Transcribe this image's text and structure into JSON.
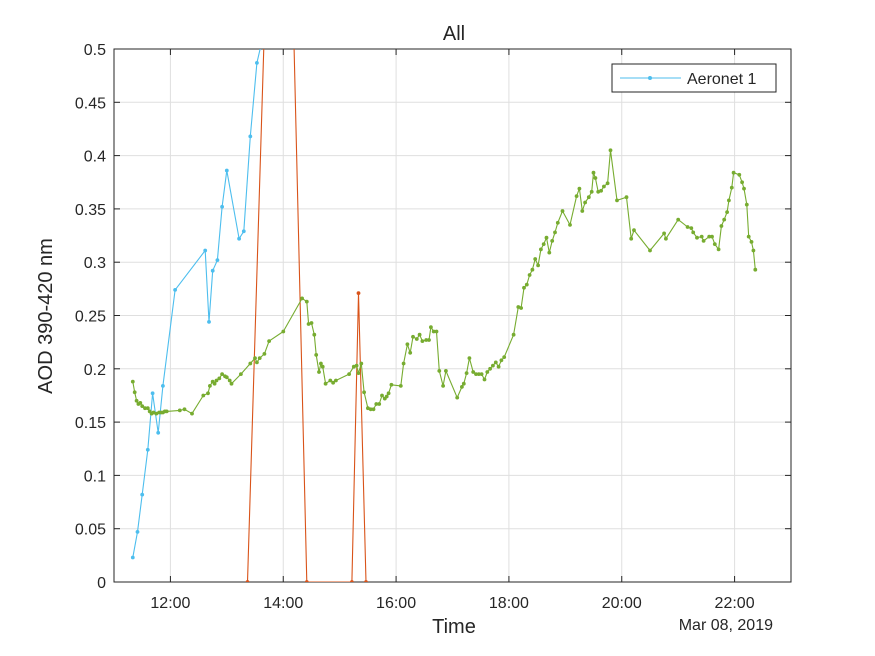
{
  "chart_data": {
    "type": "line",
    "title": "All",
    "xlabel": "Time",
    "ylabel": "AOD 390-420 nm",
    "date_label": "Mar 08, 2019",
    "xlim": [
      "11:00",
      "23:00"
    ],
    "ylim": [
      0,
      0.5
    ],
    "x_ticks": [
      "12:00",
      "14:00",
      "16:00",
      "18:00",
      "20:00",
      "22:00"
    ],
    "y_ticks": [
      "0",
      "0.05",
      "0.1",
      "0.15",
      "0.2",
      "0.25",
      "0.3",
      "0.35",
      "0.4",
      "0.45",
      "0.5"
    ],
    "grid": true,
    "legend": {
      "position": "top-right",
      "entries": [
        "Aeronet 1"
      ]
    },
    "series": [
      {
        "name": "Aeronet 1",
        "color": "#4DBEEE",
        "x": [
          "11:20",
          "11:25",
          "11:30",
          "11:36",
          "11:41",
          "11:47",
          "11:52",
          "12:05",
          "12:37",
          "12:41",
          "12:45",
          "12:50",
          "12:55",
          "13:00",
          "13:13",
          "13:18",
          "13:25",
          "13:32",
          "13:38"
        ],
        "y": [
          0.023,
          0.047,
          0.082,
          0.124,
          0.177,
          0.14,
          0.184,
          0.274,
          0.311,
          0.244,
          0.292,
          0.302,
          0.352,
          0.386,
          0.322,
          0.329,
          0.418,
          0.487,
          0.51
        ]
      },
      {
        "color": "#D95319",
        "x": [
          "13:22",
          "13:40",
          "14:11",
          "14:25",
          "15:13",
          "15:20",
          "15:28"
        ],
        "y": [
          0,
          0.52,
          0.52,
          0,
          0,
          0.271,
          0
        ]
      },
      {
        "color": "#77AC30",
        "x": [
          "11:20",
          "11:22",
          "11:24",
          "11:26",
          "11:28",
          "11:30",
          "11:33",
          "11:36",
          "11:38",
          "11:40",
          "11:42",
          "11:45",
          "11:48",
          "11:50",
          "11:52",
          "11:54",
          "11:56",
          "12:10",
          "12:15",
          "12:23",
          "12:35",
          "12:40",
          "12:42",
          "12:45",
          "12:47",
          "12:49",
          "12:52",
          "12:55",
          "12:58",
          "13:00",
          "13:03",
          "13:05",
          "13:15",
          "13:25",
          "13:30",
          "13:32",
          "13:35",
          "13:40",
          "13:45",
          "14:00",
          "14:20",
          "14:25",
          "14:27",
          "14:30",
          "14:33",
          "14:35",
          "14:38",
          "14:40",
          "14:42",
          "14:45",
          "14:50",
          "14:53",
          "14:56",
          "15:10",
          "15:15",
          "15:18",
          "15:20",
          "15:23",
          "15:26",
          "15:30",
          "15:33",
          "15:36",
          "15:39",
          "15:42",
          "15:45",
          "15:48",
          "15:50",
          "15:52",
          "15:55",
          "16:05",
          "16:08",
          "16:12",
          "16:15",
          "16:18",
          "16:22",
          "16:25",
          "16:28",
          "16:32",
          "16:35",
          "16:37",
          "16:40",
          "16:43",
          "16:46",
          "16:50",
          "16:53",
          "17:05",
          "17:10",
          "17:12",
          "17:15",
          "17:18",
          "17:22",
          "17:25",
          "17:28",
          "17:31",
          "17:34",
          "17:37",
          "17:40",
          "17:43",
          "17:46",
          "17:49",
          "17:52",
          "17:55",
          "18:05",
          "18:10",
          "18:13",
          "18:16",
          "18:19",
          "18:22",
          "18:25",
          "18:28",
          "18:31",
          "18:34",
          "18:37",
          "18:40",
          "18:43",
          "18:46",
          "18:49",
          "18:52",
          "18:57",
          "19:05",
          "19:12",
          "19:15",
          "19:18",
          "19:21",
          "19:25",
          "19:28",
          "19:30",
          "19:32",
          "19:35",
          "19:38",
          "19:41",
          "19:45",
          "19:48",
          "19:55",
          "20:05",
          "20:10",
          "20:13",
          "20:30",
          "20:45",
          "20:47",
          "21:00",
          "21:10",
          "21:14",
          "21:16",
          "21:20",
          "21:25",
          "21:27",
          "21:33",
          "21:36",
          "21:39",
          "21:43",
          "21:46",
          "21:49",
          "21:52",
          "21:54",
          "21:57",
          "21:59",
          "22:05",
          "22:08",
          "22:10",
          "22:13",
          "22:15",
          "22:18",
          "22:20",
          "22:22"
        ],
        "y": [
          0.188,
          0.178,
          0.17,
          0.167,
          0.168,
          0.165,
          0.163,
          0.163,
          0.16,
          0.158,
          0.159,
          0.158,
          0.159,
          0.159,
          0.159,
          0.16,
          0.16,
          0.161,
          0.162,
          0.158,
          0.175,
          0.177,
          0.184,
          0.188,
          0.186,
          0.189,
          0.191,
          0.195,
          0.193,
          0.192,
          0.189,
          0.186,
          0.195,
          0.205,
          0.21,
          0.206,
          0.21,
          0.214,
          0.226,
          0.235,
          0.266,
          0.263,
          0.242,
          0.243,
          0.232,
          0.213,
          0.197,
          0.205,
          0.202,
          0.186,
          0.189,
          0.187,
          0.189,
          0.195,
          0.202,
          0.203,
          0.196,
          0.205,
          0.178,
          0.163,
          0.162,
          0.162,
          0.167,
          0.167,
          0.175,
          0.172,
          0.174,
          0.177,
          0.185,
          0.184,
          0.205,
          0.223,
          0.215,
          0.23,
          0.228,
          0.232,
          0.226,
          0.227,
          0.227,
          0.239,
          0.235,
          0.235,
          0.198,
          0.184,
          0.198,
          0.173,
          0.183,
          0.186,
          0.196,
          0.21,
          0.197,
          0.195,
          0.195,
          0.195,
          0.19,
          0.197,
          0.2,
          0.203,
          0.206,
          0.202,
          0.208,
          0.211,
          0.232,
          0.258,
          0.257,
          0.276,
          0.279,
          0.288,
          0.293,
          0.303,
          0.297,
          0.312,
          0.317,
          0.323,
          0.309,
          0.32,
          0.328,
          0.337,
          0.348,
          0.335,
          0.362,
          0.369,
          0.348,
          0.356,
          0.361,
          0.366,
          0.384,
          0.379,
          0.366,
          0.367,
          0.371,
          0.374,
          0.405,
          0.358,
          0.361,
          0.322,
          0.33,
          0.311,
          0.327,
          0.322,
          0.34,
          0.333,
          0.332,
          0.328,
          0.323,
          0.324,
          0.32,
          0.324,
          0.324,
          0.317,
          0.312,
          0.334,
          0.34,
          0.347,
          0.358,
          0.37,
          0.384,
          0.382,
          0.375,
          0.369,
          0.354,
          0.324,
          0.319,
          0.311,
          0.293
        ]
      }
    ]
  }
}
